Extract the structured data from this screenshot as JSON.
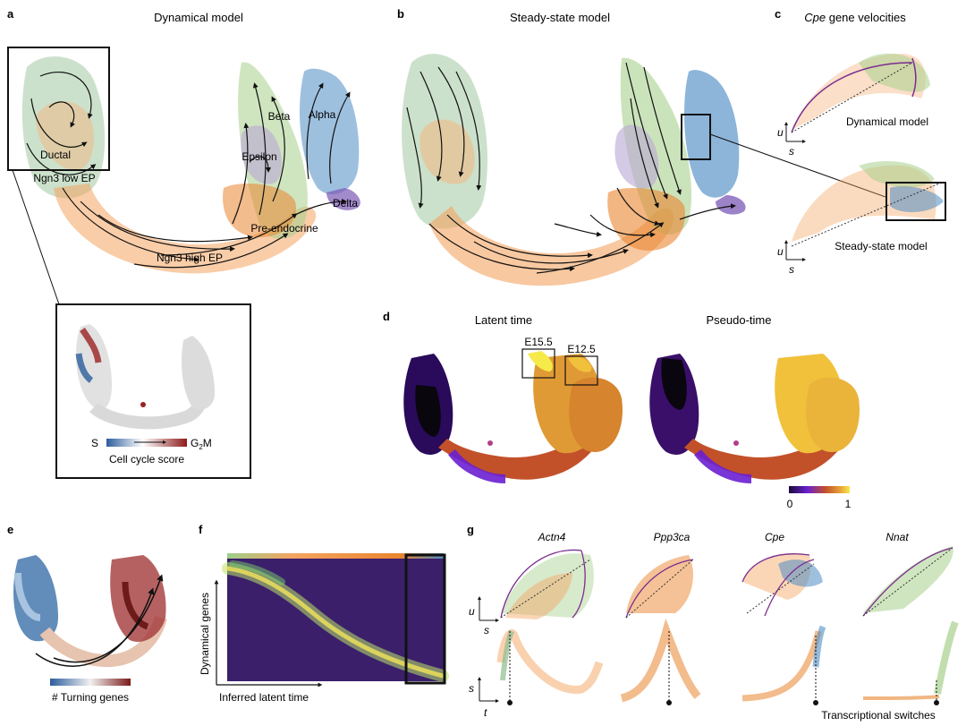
{
  "figure": {
    "panels": {
      "a": {
        "label": "a",
        "title": "Dynamical model",
        "clusters": [
          "Ductal",
          "Ngn3 low EP",
          "Ngn3 high EP",
          "Pre-endocrine",
          "Epsilon",
          "Beta",
          "Alpha",
          "Delta"
        ],
        "inset": {
          "legend_left": "S",
          "legend_right": "G2M",
          "legend_right_main": "G",
          "legend_right_sub": "2",
          "legend_right_tail": "M",
          "caption": "Cell cycle score"
        }
      },
      "b": {
        "label": "b",
        "title": "Steady-state model"
      },
      "c": {
        "label": "c",
        "title_gene": "Cpe",
        "title_rest": " gene velocities",
        "top_caption": "Dynamical model",
        "bottom_caption": "Steady-state model",
        "axis_u": "u",
        "axis_s": "s"
      },
      "d": {
        "label": "d",
        "left_title": "Latent time",
        "right_title": "Pseudo-time",
        "box1": "E15.5",
        "box2": "E12.5",
        "colorbar_min": "0",
        "colorbar_max": "1"
      },
      "e": {
        "label": "e",
        "caption": "# Turning genes"
      },
      "f": {
        "label": "f",
        "ylabel": "Dynamical genes",
        "xlabel": "Inferred latent time"
      },
      "g": {
        "label": "g",
        "genes": [
          "Actn4",
          "Ppp3ca",
          "Cpe",
          "Nnat"
        ],
        "axis_u": "u",
        "axis_s": "s",
        "axis_t": "t",
        "caption": "Transcriptional switches"
      }
    },
    "colors": {
      "ductal": "#8fbc8f",
      "ngn3low": "#f2b880",
      "ngn3high": "#f4a460",
      "preendo": "#e9852e",
      "epsilon": "#b9a6d3",
      "beta": "#a8d08d",
      "alpha": "#4f8dc4",
      "delta": "#7b58b5",
      "fit_curve": "#7b2c8f",
      "box": "#111111"
    }
  }
}
